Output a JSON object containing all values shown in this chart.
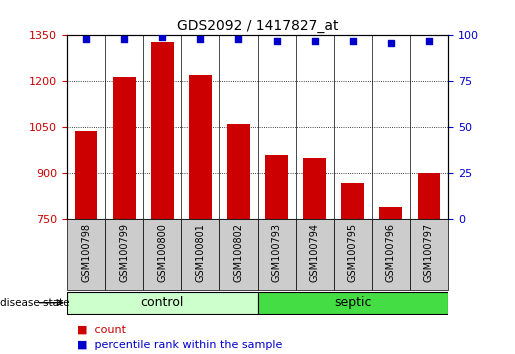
{
  "title": "GDS2092 / 1417827_at",
  "samples": [
    "GSM100798",
    "GSM100799",
    "GSM100800",
    "GSM100801",
    "GSM100802",
    "GSM100793",
    "GSM100794",
    "GSM100795",
    "GSM100796",
    "GSM100797"
  ],
  "counts": [
    1040,
    1215,
    1330,
    1220,
    1060,
    960,
    950,
    870,
    790,
    900
  ],
  "percentiles": [
    98,
    98,
    99,
    98,
    98,
    97,
    97,
    97,
    96,
    97
  ],
  "groups": [
    "control",
    "control",
    "control",
    "control",
    "control",
    "septic",
    "septic",
    "septic",
    "septic",
    "septic"
  ],
  "ymin": 750,
  "ymax": 1350,
  "pct_min": 0,
  "pct_max": 100,
  "yticks_left": [
    750,
    900,
    1050,
    1200,
    1350
  ],
  "yticks_right": [
    0,
    25,
    50,
    75,
    100
  ],
  "bar_color": "#cc0000",
  "dot_color": "#0000cc",
  "control_color_light": "#ccffcc",
  "control_color": "#ccffcc",
  "septic_color": "#44dd44",
  "bg_color": "#cccccc",
  "title_fontsize": 10,
  "tick_fontsize": 7,
  "group_fontsize": 9,
  "legend_fontsize": 8
}
